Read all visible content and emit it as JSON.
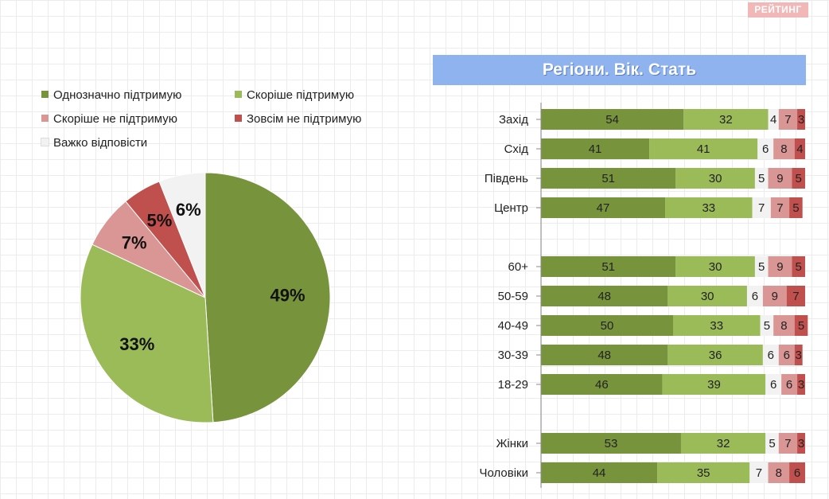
{
  "brand": "РЕЙТИНГ",
  "banner_title": "Регіони. Вік. Стать",
  "legend": [
    {
      "label": "Однозначно підтримую",
      "color": "#77933c"
    },
    {
      "label": "Скоріше підтримую",
      "color": "#9bbb59"
    },
    {
      "label": "Скоріше не підтримую",
      "color": "#da9694"
    },
    {
      "label": "Зовсім не підтримую",
      "color": "#c0504d"
    },
    {
      "label": "Важко відповісти",
      "color": "#f2f2f2"
    }
  ],
  "chart_data": [
    {
      "type": "pie",
      "slices": [
        {
          "label": "Однозначно підтримую",
          "value": 49,
          "display": "49%",
          "color": "#77933c"
        },
        {
          "label": "Скоріше підтримую",
          "value": 33,
          "display": "33%",
          "color": "#9bbb59"
        },
        {
          "label": "Скоріше не підтримую",
          "value": 7,
          "display": "7%",
          "color": "#da9694"
        },
        {
          "label": "Зовсім не підтримую",
          "value": 5,
          "display": "5%",
          "color": "#c0504d"
        },
        {
          "label": "Важко відповісти",
          "value": 6,
          "display": "6%",
          "color": "#f2f2f2"
        }
      ]
    },
    {
      "type": "bar",
      "orientation": "horizontal",
      "stacked": true,
      "series_names": [
        "Однозначно підтримую",
        "Скоріше підтримую",
        "Важко відповісти",
        "Скоріше не підтримую",
        "Зовсім не підтримую"
      ],
      "series_colors": [
        "#77933c",
        "#9bbb59",
        "#f2f2f2",
        "#da9694",
        "#c0504d"
      ],
      "groups": [
        {
          "rows": [
            {
              "label": "Захід",
              "values": [
                54,
                32,
                4,
                7,
                3
              ]
            },
            {
              "label": "Схід",
              "values": [
                41,
                41,
                6,
                8,
                4
              ]
            },
            {
              "label": "Південь",
              "values": [
                51,
                30,
                5,
                9,
                5
              ]
            },
            {
              "label": "Центр",
              "values": [
                47,
                33,
                7,
                7,
                5
              ]
            }
          ]
        },
        {
          "rows": [
            {
              "label": "60+",
              "values": [
                51,
                30,
                5,
                9,
                5
              ]
            },
            {
              "label": "50-59",
              "values": [
                48,
                30,
                6,
                9,
                7
              ]
            },
            {
              "label": "40-49",
              "values": [
                50,
                33,
                5,
                8,
                5
              ]
            },
            {
              "label": "30-39",
              "values": [
                48,
                36,
                6,
                6,
                3
              ]
            },
            {
              "label": "18-29",
              "values": [
                46,
                39,
                6,
                6,
                3
              ]
            }
          ]
        },
        {
          "rows": [
            {
              "label": "Жінки",
              "values": [
                53,
                32,
                5,
                7,
                3
              ]
            },
            {
              "label": "Чоловіки",
              "values": [
                44,
                35,
                7,
                8,
                6
              ]
            }
          ]
        }
      ]
    }
  ]
}
